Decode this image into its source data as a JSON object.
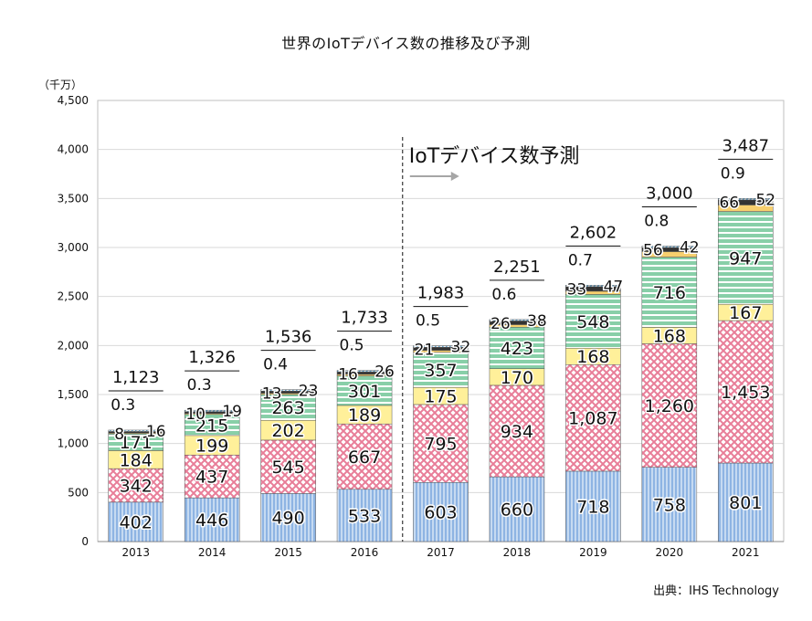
{
  "chart_data": {
    "type": "bar",
    "stacked": true,
    "title": "世界のIoTデバイス数の推移及び予測",
    "unit_label": "（千万）",
    "source": "出典：IHS Technology",
    "forecast_annotation": "IoTデバイス数予測",
    "forecast_start_category": "2017",
    "categories": [
      "2013",
      "2014",
      "2015",
      "2016",
      "2017",
      "2018",
      "2019",
      "2020",
      "2021"
    ],
    "ylim": [
      0,
      4500
    ],
    "yticks": [
      0,
      500,
      1000,
      1500,
      2000,
      2500,
      3000,
      3500,
      4000,
      4500
    ],
    "ytick_labels": [
      "0",
      "500",
      "1,000",
      "1,500",
      "2,000",
      "2,500",
      "3,000",
      "3,500",
      "4,000",
      "4,500"
    ],
    "grid": true,
    "totals": [
      "1,123",
      "1,326",
      "1,536",
      "1,733",
      "1,983",
      "2,251",
      "2,602",
      "3,000",
      "3,487"
    ],
    "series": [
      {
        "fill": "#8eb4e3",
        "pattern": "vlines",
        "values": [
          402,
          446,
          490,
          533,
          603,
          660,
          718,
          758,
          801
        ],
        "labels": [
          "402",
          "446",
          "490",
          "533",
          "603",
          "660",
          "718",
          "758",
          "801"
        ]
      },
      {
        "fill": "#f8c8d2",
        "pattern": "crosshatch",
        "values": [
          342,
          437,
          545,
          667,
          795,
          934,
          1087,
          1260,
          1453
        ],
        "labels": [
          "342",
          "437",
          "545",
          "667",
          "795",
          "934",
          "1,087",
          "1,260",
          "1,453"
        ]
      },
      {
        "fill": "#fff09a",
        "pattern": "solid",
        "values": [
          184,
          199,
          202,
          189,
          175,
          170,
          168,
          168,
          167
        ],
        "labels": [
          "184",
          "199",
          "202",
          "189",
          "175",
          "170",
          "168",
          "168",
          "167"
        ]
      },
      {
        "fill": "#88cfa8",
        "pattern": "hlines",
        "values": [
          171,
          215,
          263,
          301,
          357,
          423,
          548,
          716,
          947
        ],
        "labels": [
          "171",
          "215",
          "263",
          "301",
          "357",
          "423",
          "548",
          "716",
          "947"
        ]
      },
      {
        "fill": "#f7cf6e",
        "pattern": "solid",
        "values": [
          8,
          10,
          13,
          16,
          21,
          26,
          33,
          56,
          66
        ],
        "labels": [
          "8",
          "10",
          "13",
          "16",
          "21",
          "26",
          "33",
          "56",
          "66"
        ]
      },
      {
        "fill": "#333333",
        "pattern": "solid",
        "values": [
          16,
          19,
          23,
          26,
          32,
          38,
          47,
          42,
          52
        ],
        "labels": [
          "16",
          "19",
          "23",
          "26",
          "32",
          "38",
          "47",
          "42",
          "52"
        ]
      },
      {
        "fill": "#9fd2e8",
        "pattern": "diag",
        "values": [
          0.3,
          0.3,
          0.4,
          0.5,
          0.5,
          0.6,
          0.7,
          0.8,
          0.9
        ],
        "labels": [
          "0.3",
          "0.3",
          "0.4",
          "0.5",
          "0.5",
          "0.6",
          "0.7",
          "0.8",
          "0.9"
        ]
      }
    ]
  }
}
